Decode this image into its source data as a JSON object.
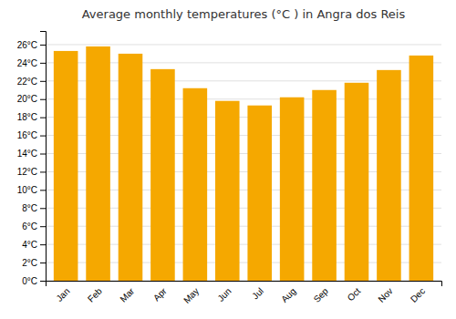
{
  "chart_data": {
    "type": "bar",
    "title": "Average monthly temperatures (°C ) in Angra dos Reis",
    "categories": [
      "Jan",
      "Feb",
      "Mar",
      "Apr",
      "May",
      "Jun",
      "Jul",
      "Aug",
      "Sep",
      "Oct",
      "Nov",
      "Dec"
    ],
    "values": [
      25.3,
      25.8,
      25.0,
      23.3,
      21.2,
      19.8,
      19.3,
      20.2,
      21.0,
      21.8,
      23.2,
      24.8
    ],
    "color": "#F5A800",
    "ylim": [
      0,
      27.5
    ],
    "yticks": [
      {
        "value": 0,
        "label": "0°C"
      },
      {
        "value": 2,
        "label": "2°C"
      },
      {
        "value": 4,
        "label": "4°C"
      },
      {
        "value": 6,
        "label": "6°C"
      },
      {
        "value": 8,
        "label": "8°C"
      },
      {
        "value": 10,
        "label": "10°C"
      },
      {
        "value": 12,
        "label": "12°C"
      },
      {
        "value": 14,
        "label": "14°C"
      },
      {
        "value": 16,
        "label": "16°C"
      },
      {
        "value": 18,
        "label": "18°C"
      },
      {
        "value": 20,
        "label": "20°C"
      },
      {
        "value": 22,
        "label": "22°C"
      },
      {
        "value": 24,
        "label": "24°C"
      },
      {
        "value": 26,
        "label": "26°C"
      }
    ],
    "grid": true
  }
}
